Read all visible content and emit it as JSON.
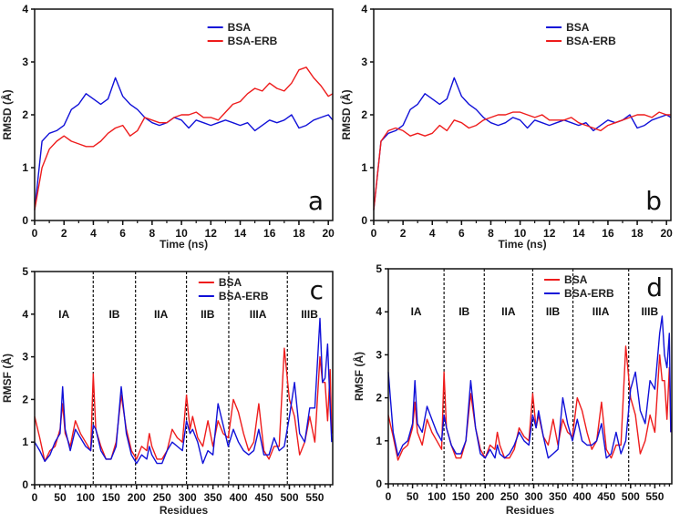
{
  "colors": {
    "blue": "#1010d8",
    "red": "#ee1c1c",
    "axis": "#111111"
  },
  "chart_data": [
    {
      "type": "line",
      "panel_letter": "a",
      "xlabel": "Time (ns)",
      "ylabel": "RMSD (Å)",
      "xlim": [
        0,
        20.3
      ],
      "ylim": [
        0,
        4
      ],
      "xticks": [
        0,
        2,
        4,
        6,
        8,
        10,
        12,
        14,
        16,
        18,
        20
      ],
      "yticks": [
        0,
        1,
        2,
        3,
        4
      ],
      "legend_position": "top-right",
      "x": [
        0,
        0.5,
        1,
        1.5,
        2,
        2.5,
        3,
        3.5,
        4,
        4.5,
        5,
        5.5,
        6,
        6.5,
        7,
        7.5,
        8,
        8.5,
        9,
        9.5,
        10,
        10.5,
        11,
        11.5,
        12,
        12.5,
        13,
        13.5,
        14,
        14.5,
        15,
        15.5,
        16,
        16.5,
        17,
        17.5,
        18,
        18.5,
        19,
        19.5,
        20,
        20.3
      ],
      "series": [
        {
          "name": "BSA",
          "color": "blue",
          "values": [
            0.2,
            1.5,
            1.65,
            1.7,
            1.8,
            2.1,
            2.2,
            2.4,
            2.3,
            2.2,
            2.3,
            2.7,
            2.35,
            2.2,
            2.1,
            1.95,
            1.85,
            1.8,
            1.85,
            1.95,
            1.9,
            1.75,
            1.9,
            1.85,
            1.8,
            1.85,
            1.9,
            1.85,
            1.8,
            1.85,
            1.7,
            1.8,
            1.9,
            1.85,
            1.9,
            2.0,
            1.75,
            1.8,
            1.9,
            1.95,
            2.0,
            1.9
          ]
        },
        {
          "name": "BSA-ERB",
          "color": "red",
          "values": [
            0.2,
            1.0,
            1.35,
            1.5,
            1.6,
            1.5,
            1.45,
            1.4,
            1.4,
            1.5,
            1.65,
            1.75,
            1.8,
            1.6,
            1.7,
            1.95,
            1.9,
            1.85,
            1.85,
            1.95,
            2.0,
            2.0,
            2.05,
            1.95,
            1.95,
            1.9,
            2.05,
            2.2,
            2.25,
            2.4,
            2.5,
            2.45,
            2.6,
            2.5,
            2.45,
            2.6,
            2.85,
            2.9,
            2.7,
            2.55,
            2.35,
            2.4
          ]
        }
      ]
    },
    {
      "type": "line",
      "panel_letter": "b",
      "xlabel": "Time (ns)",
      "ylabel": "RMSD (Å)",
      "xlim": [
        0,
        20.3
      ],
      "ylim": [
        0,
        4
      ],
      "xticks": [
        0,
        2,
        4,
        6,
        8,
        10,
        12,
        14,
        16,
        18,
        20
      ],
      "yticks": [
        0,
        1,
        2,
        3,
        4
      ],
      "legend_position": "top-right",
      "x": [
        0,
        0.5,
        1,
        1.5,
        2,
        2.5,
        3,
        3.5,
        4,
        4.5,
        5,
        5.5,
        6,
        6.5,
        7,
        7.5,
        8,
        8.5,
        9,
        9.5,
        10,
        10.5,
        11,
        11.5,
        12,
        12.5,
        13,
        13.5,
        14,
        14.5,
        15,
        15.5,
        16,
        16.5,
        17,
        17.5,
        18,
        18.5,
        19,
        19.5,
        20,
        20.3
      ],
      "series": [
        {
          "name": "BSA",
          "color": "blue",
          "values": [
            0.2,
            1.5,
            1.65,
            1.7,
            1.8,
            2.1,
            2.2,
            2.4,
            2.3,
            2.2,
            2.3,
            2.7,
            2.35,
            2.2,
            2.1,
            1.95,
            1.85,
            1.8,
            1.85,
            1.95,
            1.9,
            1.75,
            1.9,
            1.85,
            1.8,
            1.85,
            1.9,
            1.85,
            1.8,
            1.85,
            1.7,
            1.8,
            1.9,
            1.85,
            1.9,
            2.0,
            1.75,
            1.8,
            1.9,
            1.95,
            2.0,
            1.95
          ]
        },
        {
          "name": "BSA-ERB",
          "color": "red",
          "values": [
            0.2,
            1.5,
            1.7,
            1.75,
            1.7,
            1.6,
            1.65,
            1.6,
            1.65,
            1.8,
            1.7,
            1.9,
            1.85,
            1.75,
            1.8,
            1.9,
            1.95,
            2.0,
            2.0,
            2.05,
            2.05,
            2.0,
            1.95,
            2.0,
            1.9,
            1.9,
            1.9,
            1.95,
            1.85,
            1.8,
            1.75,
            1.7,
            1.8,
            1.85,
            1.9,
            1.95,
            2.0,
            2.0,
            1.95,
            2.05,
            2.0,
            2.0
          ]
        }
      ]
    },
    {
      "type": "line",
      "panel_letter": "c",
      "xlabel": "Residues",
      "ylabel": "RMSF (Å)",
      "xlim": [
        0,
        585
      ],
      "ylim": [
        0,
        5
      ],
      "xticks": [
        0,
        50,
        100,
        150,
        200,
        250,
        300,
        350,
        400,
        450,
        500,
        550
      ],
      "yticks": [
        0,
        1,
        2,
        3,
        4,
        5
      ],
      "legend_position": "top-right",
      "domain_boundaries": [
        115,
        198,
        298,
        381,
        496
      ],
      "domains": [
        "IA",
        "IB",
        "IIA",
        "IIB",
        "IIIA",
        "IIIB"
      ],
      "x": [
        0,
        10,
        20,
        30,
        40,
        50,
        55,
        60,
        70,
        80,
        90,
        100,
        110,
        115,
        120,
        130,
        140,
        150,
        160,
        170,
        180,
        190,
        200,
        210,
        220,
        225,
        230,
        240,
        250,
        260,
        270,
        280,
        290,
        298,
        305,
        310,
        320,
        330,
        340,
        350,
        360,
        370,
        380,
        390,
        400,
        410,
        420,
        430,
        440,
        450,
        460,
        470,
        480,
        490,
        500,
        510,
        520,
        530,
        540,
        550,
        560,
        565,
        570,
        575,
        580,
        583
      ],
      "series": [
        {
          "name": "BSA",
          "color": "red",
          "values": [
            1.6,
            1.1,
            0.55,
            0.8,
            0.9,
            1.3,
            1.9,
            1.2,
            0.9,
            1.5,
            1.2,
            1.0,
            0.8,
            2.6,
            1.3,
            0.9,
            0.6,
            0.6,
            1.0,
            2.1,
            1.3,
            0.8,
            0.6,
            0.9,
            0.8,
            1.2,
            0.9,
            0.6,
            0.6,
            0.8,
            1.3,
            1.1,
            1.0,
            2.1,
            1.3,
            1.6,
            1.1,
            0.9,
            1.5,
            0.9,
            1.5,
            1.2,
            1.1,
            2.0,
            1.7,
            1.2,
            0.8,
            1.0,
            1.9,
            0.8,
            0.6,
            0.9,
            0.9,
            3.2,
            2.0,
            1.6,
            0.7,
            1.0,
            1.6,
            1.0,
            3.0,
            2.4,
            2.4,
            1.5,
            2.7,
            1.2
          ]
        },
        {
          "name": "BSA-ERB",
          "color": "blue",
          "values": [
            1.0,
            0.8,
            0.55,
            0.7,
            1.0,
            1.2,
            2.3,
            1.3,
            0.8,
            1.3,
            1.1,
            0.9,
            0.8,
            1.4,
            1.3,
            0.8,
            0.6,
            0.6,
            0.9,
            2.3,
            1.2,
            0.7,
            0.5,
            0.7,
            0.6,
            0.9,
            0.7,
            0.5,
            0.5,
            0.8,
            1.0,
            0.9,
            0.8,
            1.5,
            1.2,
            1.3,
            1.0,
            0.5,
            0.8,
            0.7,
            1.9,
            1.4,
            0.9,
            1.3,
            1.0,
            0.8,
            0.7,
            0.8,
            1.3,
            0.7,
            0.7,
            1.1,
            0.8,
            0.9,
            1.6,
            2.4,
            1.2,
            1.0,
            1.8,
            1.8,
            3.9,
            2.4,
            2.5,
            3.3,
            1.8,
            1.0
          ]
        }
      ]
    },
    {
      "type": "line",
      "panel_letter": "d",
      "xlabel": "Residues",
      "ylabel": "RMSF (Å)",
      "xlim": [
        0,
        585
      ],
      "ylim": [
        0,
        5
      ],
      "xticks": [
        0,
        50,
        100,
        150,
        200,
        250,
        300,
        350,
        400,
        450,
        500,
        550
      ],
      "yticks": [
        0,
        1,
        2,
        3,
        4,
        5
      ],
      "legend_position": "top-right",
      "domain_boundaries": [
        115,
        198,
        298,
        381,
        496
      ],
      "domains": [
        "IA",
        "IB",
        "IIA",
        "IIB",
        "IIIA",
        "IIIB"
      ],
      "x": [
        0,
        10,
        20,
        30,
        40,
        50,
        55,
        60,
        70,
        80,
        90,
        100,
        110,
        115,
        120,
        130,
        140,
        150,
        160,
        170,
        180,
        190,
        200,
        210,
        220,
        225,
        230,
        240,
        250,
        260,
        270,
        280,
        290,
        298,
        305,
        310,
        320,
        330,
        340,
        350,
        360,
        370,
        380,
        390,
        400,
        410,
        420,
        430,
        440,
        450,
        460,
        470,
        480,
        490,
        500,
        510,
        520,
        530,
        540,
        550,
        560,
        565,
        570,
        575,
        580,
        583
      ],
      "series": [
        {
          "name": "BSA",
          "color": "red",
          "values": [
            1.6,
            1.1,
            0.55,
            0.8,
            0.9,
            1.3,
            1.9,
            1.2,
            0.9,
            1.5,
            1.2,
            1.0,
            0.8,
            2.6,
            1.3,
            0.9,
            0.6,
            0.6,
            1.0,
            2.1,
            1.3,
            0.8,
            0.6,
            0.9,
            0.8,
            1.2,
            0.9,
            0.6,
            0.6,
            0.8,
            1.3,
            1.1,
            1.0,
            2.1,
            1.3,
            1.6,
            1.1,
            0.9,
            1.5,
            0.9,
            1.5,
            1.2,
            1.1,
            2.0,
            1.7,
            1.2,
            0.8,
            1.0,
            1.9,
            0.8,
            0.6,
            0.9,
            0.9,
            3.2,
            2.0,
            1.6,
            0.7,
            1.0,
            1.6,
            1.2,
            3.0,
            2.4,
            2.4,
            1.5,
            2.7,
            1.2
          ]
        },
        {
          "name": "BSA-ERB",
          "color": "blue",
          "values": [
            2.6,
            1.2,
            0.65,
            0.9,
            1.0,
            1.4,
            2.4,
            1.4,
            1.2,
            1.8,
            1.5,
            1.2,
            1.0,
            1.6,
            1.3,
            0.9,
            0.7,
            0.7,
            1.0,
            2.4,
            1.3,
            0.7,
            0.6,
            0.8,
            0.6,
            0.9,
            0.7,
            0.6,
            0.7,
            0.9,
            1.2,
            1.0,
            0.9,
            1.6,
            1.3,
            1.7,
            1.1,
            0.6,
            0.7,
            0.8,
            2.0,
            1.4,
            1.0,
            1.5,
            1.0,
            0.9,
            0.9,
            1.0,
            1.4,
            0.6,
            0.7,
            1.2,
            0.7,
            1.0,
            2.2,
            2.6,
            1.7,
            1.4,
            2.4,
            2.2,
            3.5,
            3.9,
            3.0,
            2.7,
            3.5,
            1.2
          ]
        }
      ]
    }
  ]
}
